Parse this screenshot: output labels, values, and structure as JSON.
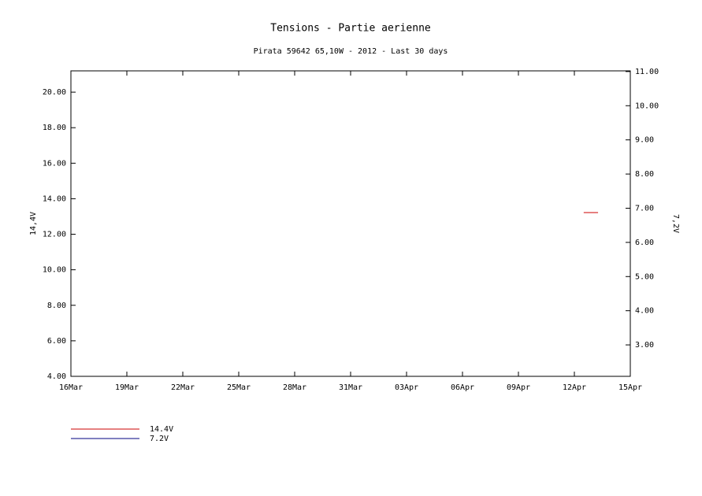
{
  "chart_data": {
    "type": "line",
    "title": "Tensions - Partie aerienne",
    "subtitle": "Pirata 59642 65,10W - 2012 - Last 30 days",
    "y_label": "14,4V",
    "y2_label": "7,2V",
    "xlim": [
      0,
      30
    ],
    "xticks": [
      {
        "value": 0,
        "label": "16Mar"
      },
      {
        "value": 3,
        "label": "19Mar"
      },
      {
        "value": 6,
        "label": "22Mar"
      },
      {
        "value": 9,
        "label": "25Mar"
      },
      {
        "value": 12,
        "label": "28Mar"
      },
      {
        "value": 15,
        "label": "31Mar"
      },
      {
        "value": 18,
        "label": "03Apr"
      },
      {
        "value": 21,
        "label": "06Apr"
      },
      {
        "value": 24,
        "label": "09Apr"
      },
      {
        "value": 27,
        "label": "12Apr"
      },
      {
        "value": 30,
        "label": "15Apr"
      }
    ],
    "ylim": [
      4,
      21.2
    ],
    "yticks": [
      {
        "value": 4,
        "label": "4.00"
      },
      {
        "value": 6,
        "label": "6.00"
      },
      {
        "value": 8,
        "label": "8.00"
      },
      {
        "value": 10,
        "label": "10.00"
      },
      {
        "value": 12,
        "label": "12.00"
      },
      {
        "value": 14,
        "label": "14.00"
      },
      {
        "value": 16,
        "label": "16.00"
      },
      {
        "value": 18,
        "label": "18.00"
      },
      {
        "value": 20,
        "label": "20.00"
      }
    ],
    "y2lim": [
      2.08,
      11.02
    ],
    "y2ticks": [
      {
        "value": 3,
        "label": "3.00"
      },
      {
        "value": 4,
        "label": "4.00"
      },
      {
        "value": 5,
        "label": "5.00"
      },
      {
        "value": 6,
        "label": "6.00"
      },
      {
        "value": 7,
        "label": "7.00"
      },
      {
        "value": 8,
        "label": "8.00"
      },
      {
        "value": 9,
        "label": "9.00"
      },
      {
        "value": 10,
        "label": "10.00"
      },
      {
        "value": 11,
        "label": "11.00"
      }
    ],
    "series": [
      {
        "name": "14.4V",
        "color": "#cc0000",
        "x": [
          27.5,
          28.27
        ],
        "values": [
          13.22,
          13.22
        ]
      },
      {
        "name": "7.2V",
        "color": "#000080",
        "axis": "y2",
        "x": [],
        "values": []
      }
    ]
  }
}
